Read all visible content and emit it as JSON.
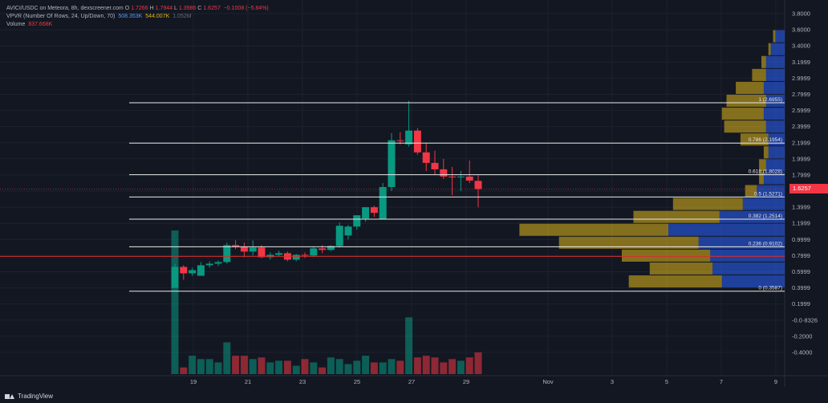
{
  "legend": {
    "symbol": "AVICI/USDC on Meteora, 8h, dexscreener.com",
    "o_label": "O",
    "o_value": "1.7266",
    "h_label": "H",
    "h_value": "1.7944",
    "l_label": "L",
    "l_value": "1.3986",
    "c_label": "C",
    "c_value": "1.6257",
    "change": "−0.1008 (−5.84%)",
    "vpvr_name": "VPVR (Number Of Rows, 24, Up/Down, 70)",
    "vpvr_up": "508.353K",
    "vpvr_down": "544.007K",
    "vpvr_total": "1.052M",
    "volume_label": "Volume",
    "volume_value": "837.668K"
  },
  "branding": {
    "text": "TradingView",
    "icon": "tradingview-logo-icon"
  },
  "colors": {
    "bg": "#131722",
    "up": "#089981",
    "down": "#f23645",
    "grid": "#1e222d",
    "vp_up": "#2962ff",
    "vp_down": "#e0b81a",
    "fib": "#e8e8e8",
    "current": "#f23645"
  },
  "current_price": "1.6257",
  "chart_data": {
    "type": "candlestick",
    "price_axis_ticks": [
      "3.8000",
      "3.6000",
      "3.4000",
      "3.1999",
      "2.9999",
      "2.7999",
      "2.5999",
      "2.3999",
      "2.1999",
      "1.9999",
      "1.7999",
      "1.5999",
      "1.3999",
      "1.1999",
      "0.9999",
      "0.7999",
      "0.5999",
      "0.3999",
      "0.1999",
      "-0.0·8326",
      "-0.2000",
      "-0.4000"
    ],
    "time_axis_ticks": [
      "19",
      "21",
      "23",
      "25",
      "27",
      "29",
      "Nov",
      "3",
      "5",
      "7",
      "9"
    ],
    "ylim": [
      -0.52,
      3.86
    ],
    "candles": [
      {
        "o": 0.4,
        "h": 0.7,
        "l": 0.4,
        "c": 0.66
      },
      {
        "o": 0.66,
        "h": 0.68,
        "l": 0.5,
        "c": 0.58
      },
      {
        "o": 0.58,
        "h": 0.65,
        "l": 0.55,
        "c": 0.62
      },
      {
        "o": 0.55,
        "h": 0.72,
        "l": 0.55,
        "c": 0.68
      },
      {
        "o": 0.68,
        "h": 0.73,
        "l": 0.65,
        "c": 0.7
      },
      {
        "o": 0.7,
        "h": 0.74,
        "l": 0.67,
        "c": 0.72
      },
      {
        "o": 0.72,
        "h": 0.96,
        "l": 0.7,
        "c": 0.93
      },
      {
        "o": 0.93,
        "h": 0.99,
        "l": 0.88,
        "c": 0.91
      },
      {
        "o": 0.91,
        "h": 0.96,
        "l": 0.78,
        "c": 0.85
      },
      {
        "o": 0.85,
        "h": 0.99,
        "l": 0.8,
        "c": 0.9
      },
      {
        "o": 0.9,
        "h": 0.93,
        "l": 0.77,
        "c": 0.78
      },
      {
        "o": 0.78,
        "h": 0.84,
        "l": 0.75,
        "c": 0.81
      },
      {
        "o": 0.81,
        "h": 0.86,
        "l": 0.79,
        "c": 0.83
      },
      {
        "o": 0.83,
        "h": 0.85,
        "l": 0.73,
        "c": 0.75
      },
      {
        "o": 0.75,
        "h": 0.82,
        "l": 0.73,
        "c": 0.81
      },
      {
        "o": 0.81,
        "h": 0.84,
        "l": 0.77,
        "c": 0.8
      },
      {
        "o": 0.8,
        "h": 0.91,
        "l": 0.78,
        "c": 0.89
      },
      {
        "o": 0.89,
        "h": 0.93,
        "l": 0.83,
        "c": 0.87
      },
      {
        "o": 0.87,
        "h": 0.93,
        "l": 0.86,
        "c": 0.92
      },
      {
        "o": 0.92,
        "h": 1.21,
        "l": 0.9,
        "c": 1.17
      },
      {
        "o": 1.05,
        "h": 1.18,
        "l": 1.0,
        "c": 1.16
      },
      {
        "o": 1.16,
        "h": 1.3,
        "l": 1.12,
        "c": 1.3
      },
      {
        "o": 1.26,
        "h": 1.4,
        "l": 1.22,
        "c": 1.4
      },
      {
        "o": 1.4,
        "h": 1.42,
        "l": 1.28,
        "c": 1.33
      },
      {
        "o": 1.25,
        "h": 1.7,
        "l": 1.25,
        "c": 1.65
      },
      {
        "o": 1.65,
        "h": 2.32,
        "l": 1.6,
        "c": 2.23
      },
      {
        "o": 2.23,
        "h": 2.33,
        "l": 2.18,
        "c": 2.22
      },
      {
        "o": 2.18,
        "h": 2.72,
        "l": 2.15,
        "c": 2.35
      },
      {
        "o": 2.35,
        "h": 2.38,
        "l": 2.05,
        "c": 2.08
      },
      {
        "o": 2.08,
        "h": 2.2,
        "l": 1.85,
        "c": 1.95
      },
      {
        "o": 1.95,
        "h": 2.1,
        "l": 1.8,
        "c": 1.87
      },
      {
        "o": 1.87,
        "h": 2.0,
        "l": 1.75,
        "c": 1.78
      },
      {
        "o": 1.78,
        "h": 1.9,
        "l": 1.55,
        "c": 1.77
      },
      {
        "o": 1.77,
        "h": 1.85,
        "l": 1.6,
        "c": 1.78
      },
      {
        "o": 1.78,
        "h": 1.98,
        "l": 1.7,
        "c": 1.73
      },
      {
        "o": 1.7266,
        "h": 1.7944,
        "l": 1.3986,
        "c": 1.6257
      }
    ],
    "volumes": [
      0.86,
      0.04,
      0.11,
      0.09,
      0.09,
      0.07,
      0.19,
      0.11,
      0.11,
      0.09,
      0.1,
      0.07,
      0.08,
      0.08,
      0.05,
      0.09,
      0.07,
      0.04,
      0.1,
      0.09,
      0.06,
      0.08,
      0.11,
      0.07,
      0.07,
      0.09,
      0.08,
      0.34,
      0.1,
      0.11,
      0.1,
      0.07,
      0.09,
      0.08,
      0.1,
      0.13
    ],
    "fib_levels": [
      {
        "ratio": "1",
        "value": "2.6955",
        "price": 2.6955
      },
      {
        "ratio": "0.786",
        "value": "2.1954",
        "price": 2.1954
      },
      {
        "ratio": "0.618",
        "value": "1.8028",
        "price": 1.8028
      },
      {
        "ratio": "0.5",
        "value": "1.5271",
        "price": 1.5271
      },
      {
        "ratio": "0.382",
        "value": "1.2514",
        "price": 1.2514
      },
      {
        "ratio": "0.236",
        "value": "0.9102",
        "price": 0.9102
      },
      {
        "ratio": "0",
        "value": "0.3587",
        "price": 0.3587
      }
    ],
    "volume_profile": [
      {
        "up": 0.04,
        "down": 0.01
      },
      {
        "up": 0.06,
        "down": 0.01
      },
      {
        "up": 0.08,
        "down": 0.02
      },
      {
        "up": 0.08,
        "down": 0.06
      },
      {
        "up": 0.09,
        "down": 0.12
      },
      {
        "up": 0.08,
        "down": 0.17
      },
      {
        "up": 0.09,
        "down": 0.18
      },
      {
        "up": 0.08,
        "down": 0.18
      },
      {
        "up": 0.07,
        "down": 0.12
      },
      {
        "up": 0.07,
        "down": 0.02
      },
      {
        "up": 0.08,
        "down": 0.03
      },
      {
        "up": 0.09,
        "down": 0.02
      },
      {
        "up": 0.12,
        "down": 0.05
      },
      {
        "up": 0.18,
        "down": 0.3
      },
      {
        "up": 0.28,
        "down": 0.37
      },
      {
        "up": 0.5,
        "down": 0.64
      },
      {
        "up": 0.37,
        "down": 0.6
      },
      {
        "up": 0.32,
        "down": 0.38
      },
      {
        "up": 0.31,
        "down": 0.27
      },
      {
        "up": 0.27,
        "down": 0.4
      }
    ],
    "volume_profile_range": [
      3.6,
      0.4
    ]
  }
}
